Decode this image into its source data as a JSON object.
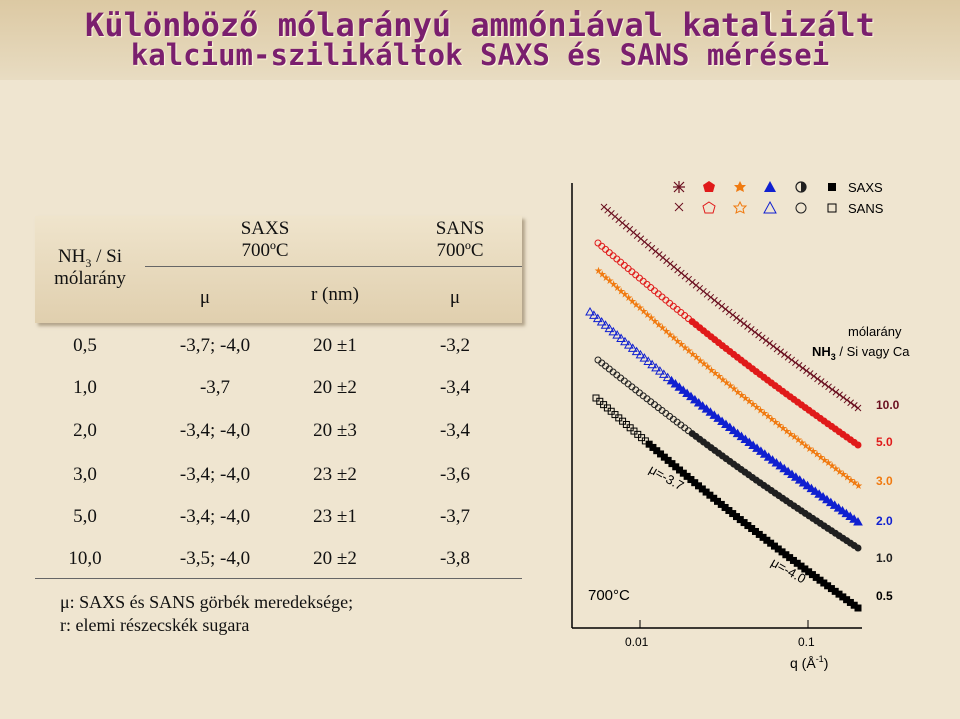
{
  "title": {
    "line1": "Különböző mólarányú ammóniával katalizált",
    "line2": "kalcium-szilikáltok SAXS és SANS mérései"
  },
  "table": {
    "header": {
      "col1_line1_prefix": "NH",
      "col1_sub": "3",
      "col1_line1_suffix": " / Si",
      "col1_line2": "mólarány",
      "saxs_label": "SAXS",
      "saxs_temp": "700ºC",
      "sans_label": "SANS",
      "sans_temp": "700ºC",
      "mu": "μ",
      "r": "r (nm)",
      "mu2": "μ"
    },
    "rows": [
      {
        "ratio": "0,5",
        "mu_saxs": "-3,7; -4,0",
        "r": "20 ±1",
        "mu_sans": "-3,2"
      },
      {
        "ratio": "1,0",
        "mu_saxs": "-3,7",
        "r": "20 ±2",
        "mu_sans": "-3,4"
      },
      {
        "ratio": "2,0",
        "mu_saxs": "-3,4; -4,0",
        "r": "20 ±3",
        "mu_sans": "-3,4"
      },
      {
        "ratio": "3,0",
        "mu_saxs": "-3,4; -4,0",
        "r": "23 ±2",
        "mu_sans": "-3,6"
      },
      {
        "ratio": "5,0",
        "mu_saxs": "-3,4; -4,0",
        "r": "23 ±1",
        "mu_sans": "-3,7"
      },
      {
        "ratio": "10,0",
        "mu_saxs": "-3,5; -4,0",
        "r": "20 ±2",
        "mu_sans": "-3,8"
      }
    ],
    "footnote1": "μ: SAXS és SANS görbék meredeksége;",
    "footnote2": "r: elemi részecskék sugara"
  },
  "plot": {
    "legend_saxs": "SAXS",
    "legend_sans": "SANS",
    "legend_title1": "mólarány",
    "legend_title2_prefix": "NH",
    "legend_title2_sub": "3",
    "legend_title2_suffix": " / Si vagy Ca",
    "temp_label": "700°C",
    "slope1": "μ=-3.7",
    "slope2": "μ=-4.0",
    "x_tick1": "0.01",
    "x_tick2": "0.1",
    "x_label_prefix": "q (Å",
    "x_label_sup": "-1",
    "x_label_suffix": ")",
    "series_labels": [
      "10.0",
      "5.0",
      "3.0",
      "2.0",
      "1.0",
      "0.5"
    ],
    "series_colors": [
      "#6a0f1f",
      "#e01a1a",
      "#f07a10",
      "#1020d0",
      "#202020",
      "#000000"
    ]
  }
}
